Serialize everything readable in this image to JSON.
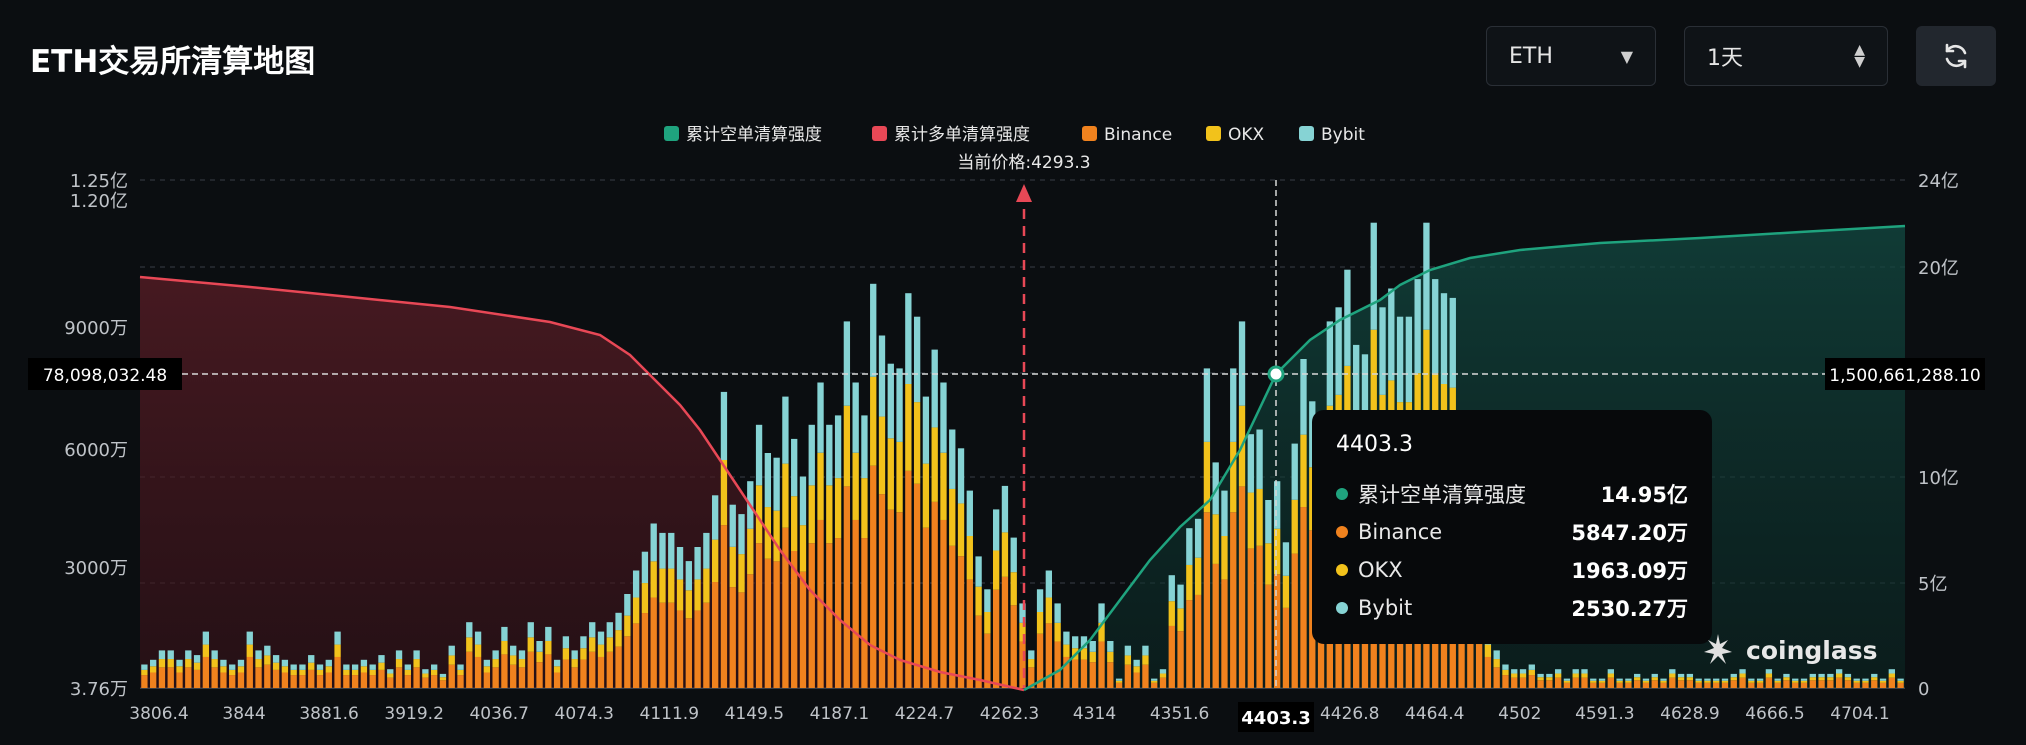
{
  "page": {
    "title": "ETH交易所清算地图"
  },
  "controls": {
    "asset_value": "ETH",
    "range_value": "1天"
  },
  "legend": [
    {
      "name": "累计空单清算强度",
      "color": "#1fa37e"
    },
    {
      "name": "累计多单清算强度",
      "color": "#e84856"
    },
    {
      "name": "Binance",
      "color": "#f0821e"
    },
    {
      "name": "OKX",
      "color": "#f2c21b"
    },
    {
      "name": "Bybit",
      "color": "#86d3d4"
    }
  ],
  "current_price_label": "当前价格:4293.3",
  "crosshair": {
    "left_value": "78,098,032.48",
    "right_value": "1,500,661,288.10",
    "x_value": "4403.3"
  },
  "tooltip": {
    "title": "4403.3",
    "rows": [
      {
        "name": "累计空单清算强度",
        "value": "14.95亿",
        "color": "#1fa37e"
      },
      {
        "name": "Binance",
        "value": "5847.20万",
        "color": "#f0821e"
      },
      {
        "name": "OKX",
        "value": "1963.09万",
        "color": "#f2c21b"
      },
      {
        "name": "Bybit",
        "value": "2530.27万",
        "color": "#86d3d4"
      }
    ]
  },
  "watermark": "coinglass",
  "chart_data": {
    "type": "bar",
    "xlabel": "",
    "ylabel": "",
    "x_ticks": [
      "3806.4",
      "3844",
      "3881.6",
      "3919.2",
      "4036.7",
      "4074.3",
      "4111.9",
      "4149.5",
      "4187.1",
      "4224.7",
      "4262.3",
      "4314",
      "4351.6",
      "4389.2",
      "4426.8",
      "4464.4",
      "4502",
      "4591.3",
      "4628.9",
      "4666.5",
      "4704.1"
    ],
    "y_left_ticks": [
      "1.25亿",
      "1.20亿",
      "9000万",
      "6000万",
      "3000万",
      "3.76万"
    ],
    "y_right_ticks": [
      "24亿",
      "20亿",
      "15亿",
      "10亿",
      "5亿",
      "0"
    ],
    "ylim_left": [
      37600,
      125000000
    ],
    "ylim_right": [
      0,
      2400000000
    ],
    "current_price": 4293.3,
    "bars_total": [
      5,
      6,
      8,
      8,
      6,
      8,
      7,
      12,
      8,
      6,
      5,
      6,
      12,
      8,
      9,
      7,
      6,
      5,
      5,
      7,
      5,
      6,
      12,
      5,
      5,
      6,
      5,
      7,
      4,
      8,
      5,
      8,
      4,
      5,
      3,
      9,
      5,
      14,
      12,
      6,
      8,
      13,
      9,
      8,
      14,
      10,
      13,
      6,
      11,
      8,
      11,
      14,
      12,
      14,
      16,
      20,
      25,
      29,
      35,
      33,
      33,
      30,
      27,
      30,
      33,
      41,
      63,
      39,
      37,
      44,
      56,
      50,
      49,
      62,
      53,
      45,
      56,
      65,
      56,
      58,
      78,
      65,
      58,
      86,
      75,
      69,
      68,
      84,
      79,
      62,
      72,
      65,
      55,
      51,
      42,
      28,
      21,
      38,
      43,
      32,
      18,
      8,
      21,
      25,
      18,
      12,
      11,
      11,
      10,
      18,
      10,
      2,
      9,
      6,
      9,
      2,
      4,
      24,
      22,
      34,
      36,
      68,
      48,
      42,
      68,
      78,
      54,
      55,
      40,
      44,
      31,
      52,
      70,
      61,
      44,
      78,
      81,
      89,
      73,
      71,
      99,
      81,
      85,
      79,
      79,
      87,
      99,
      87,
      84,
      83,
      52,
      41,
      17,
      12,
      8,
      5,
      4,
      4,
      5,
      3,
      3,
      4,
      2,
      4,
      4,
      2,
      2,
      4,
      2,
      2,
      3,
      2,
      3,
      2,
      4,
      3,
      3,
      2,
      2,
      2,
      2,
      3,
      4,
      2,
      2,
      4,
      2,
      3,
      2,
      2,
      3,
      3,
      3,
      4,
      3,
      2,
      2,
      3,
      2,
      4,
      2
    ],
    "short_cumulative_end": "24亿",
    "long_cumulative_start": "1.00亿"
  }
}
